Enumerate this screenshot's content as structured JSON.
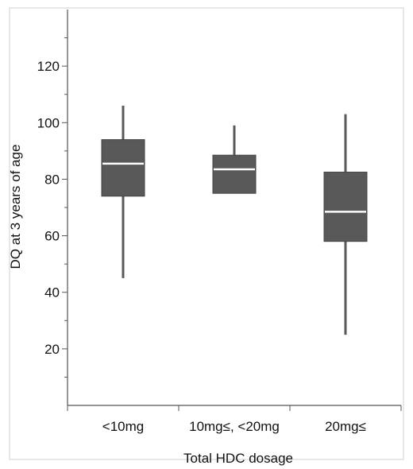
{
  "chart_data": {
    "type": "boxplot",
    "title": "",
    "xlabel": "Total HDC dosage",
    "ylabel": "DQ at 3 years of age",
    "ylim": [
      0,
      140
    ],
    "yticks": [
      20,
      40,
      60,
      80,
      100,
      120
    ],
    "grid": false,
    "categories": [
      "<10mg",
      "10mg≤, <20mg",
      "20mg≤"
    ],
    "boxes": [
      {
        "min": 45,
        "q1": 74,
        "median": 85.5,
        "q3": 94,
        "max": 106
      },
      {
        "min": 75,
        "q1": 75,
        "median": 83.5,
        "q3": 88.5,
        "max": 99
      },
      {
        "min": 25,
        "q1": 58,
        "median": 68.5,
        "q3": 82.5,
        "max": 103
      }
    ],
    "colors": {
      "box": "#595959",
      "median": "#ffffff",
      "axis": "#555555"
    }
  }
}
